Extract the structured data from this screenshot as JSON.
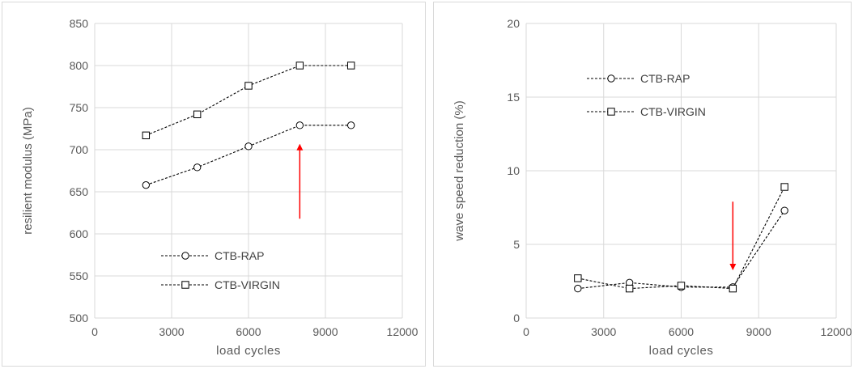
{
  "chart_data": [
    {
      "type": "line",
      "title": "",
      "xlabel": "load cycles",
      "ylabel": "resilient modulus (MPa)",
      "xlim": [
        0,
        12000
      ],
      "ylim": [
        500,
        850
      ],
      "xticks": [
        0,
        3000,
        6000,
        9000,
        12000
      ],
      "yticks": [
        500,
        550,
        600,
        650,
        700,
        750,
        800,
        850
      ],
      "grid": true,
      "legend_position": "lower-left",
      "series": [
        {
          "name": "CTB-RAP",
          "marker": "circle",
          "line_style": "dashed",
          "x": [
            2000,
            4000,
            6000,
            8000,
            10000
          ],
          "y": [
            658,
            679,
            704,
            729,
            729
          ]
        },
        {
          "name": "CTB-VIRGIN",
          "marker": "square",
          "line_style": "dashed",
          "x": [
            2000,
            4000,
            6000,
            8000,
            10000
          ],
          "y": [
            717,
            742,
            776,
            800,
            800
          ]
        }
      ],
      "annotations": [
        {
          "type": "arrow",
          "direction": "up",
          "color": "#ff0000",
          "x": 8000,
          "y_from": 618,
          "y_to": 706
        }
      ]
    },
    {
      "type": "line",
      "title": "",
      "xlabel": "load cycles",
      "ylabel": "wave speed reduction (%)",
      "xlim": [
        0,
        12000
      ],
      "ylim": [
        0,
        20
      ],
      "xticks": [
        0,
        3000,
        6000,
        9000,
        12000
      ],
      "yticks": [
        0,
        5,
        10,
        15,
        20
      ],
      "grid": true,
      "legend_position": "upper-left",
      "series": [
        {
          "name": "CTB-RAP",
          "marker": "circle",
          "line_style": "dashed",
          "x": [
            2000,
            4000,
            6000,
            8000,
            10000
          ],
          "y": [
            2.0,
            2.4,
            2.1,
            2.1,
            7.3
          ]
        },
        {
          "name": "CTB-VIRGIN",
          "marker": "square",
          "line_style": "dashed",
          "x": [
            2000,
            4000,
            6000,
            8000,
            10000
          ],
          "y": [
            2.7,
            2.0,
            2.2,
            2.0,
            8.9
          ]
        }
      ],
      "annotations": [
        {
          "type": "arrow",
          "direction": "down",
          "color": "#ff0000",
          "x": 8000,
          "y_from": 7.9,
          "y_to": 3.3
        }
      ]
    }
  ]
}
